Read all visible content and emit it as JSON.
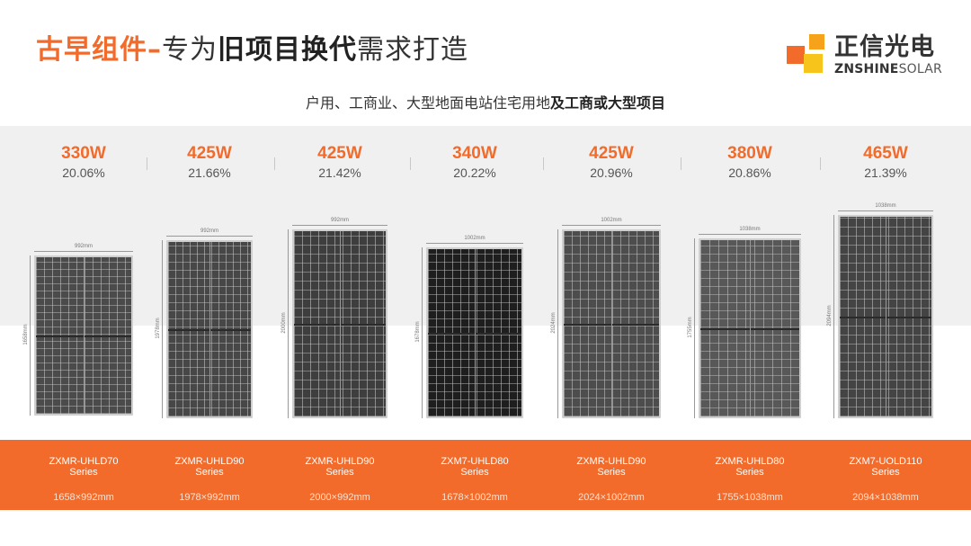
{
  "title": {
    "part1": "古早组件",
    "dash": "–",
    "part2": "专为",
    "part3": "旧项目换代",
    "part4": "需求打造"
  },
  "logo": {
    "cn": "正信光电",
    "en_bold": "ZNSHINE",
    "en_light": "SOLAR"
  },
  "subtitle": {
    "normal": "户用、工商业、大型地面电站住宅用地",
    "bold": "及工商或大型项目"
  },
  "products": [
    {
      "power": "330W",
      "efficiency": "20.06%",
      "model": "ZXMR-UHLD70",
      "series": "Series",
      "size": "1658×992mm",
      "width_label": "992mm",
      "height_label": "1658mm",
      "cell_color": "#4b4b4b"
    },
    {
      "power": "425W",
      "efficiency": "21.66%",
      "model": "ZXMR-UHLD90",
      "series": "Series",
      "size": "1978×992mm",
      "width_label": "992mm",
      "height_label": "1978mm",
      "cell_color": "#474747"
    },
    {
      "power": "425W",
      "efficiency": "21.42%",
      "model": "ZXMR-UHLD90",
      "series": "Series",
      "size": "2000×992mm",
      "width_label": "992mm",
      "height_label": "2000mm",
      "cell_color": "#3e3e3e"
    },
    {
      "power": "340W",
      "efficiency": "20.22%",
      "model": "ZXM7-UHLD80",
      "series": "Series",
      "size": "1678×1002mm",
      "width_label": "1002mm",
      "height_label": "1678mm",
      "cell_color": "#1e1e1e"
    },
    {
      "power": "425W",
      "efficiency": "20.96%",
      "model": "ZXMR-UHLD90",
      "series": "Series",
      "size": "2024×1002mm",
      "width_label": "1002mm",
      "height_label": "2024mm",
      "cell_color": "#4d4d4d"
    },
    {
      "power": "380W",
      "efficiency": "20.86%",
      "model": "ZXMR-UHLD80",
      "series": "Series",
      "size": "1755×1038mm",
      "width_label": "1038mm",
      "height_label": "1755mm",
      "cell_color": "#585858"
    },
    {
      "power": "465W",
      "efficiency": "21.39%",
      "model": "ZXM7-UOLD110",
      "series": "Series",
      "size": "2094×1038mm",
      "width_label": "1038mm",
      "height_label": "2094mm",
      "cell_color": "#444444"
    }
  ],
  "colors": {
    "accent": "#f26b2a",
    "band": "#f0f0f0"
  }
}
